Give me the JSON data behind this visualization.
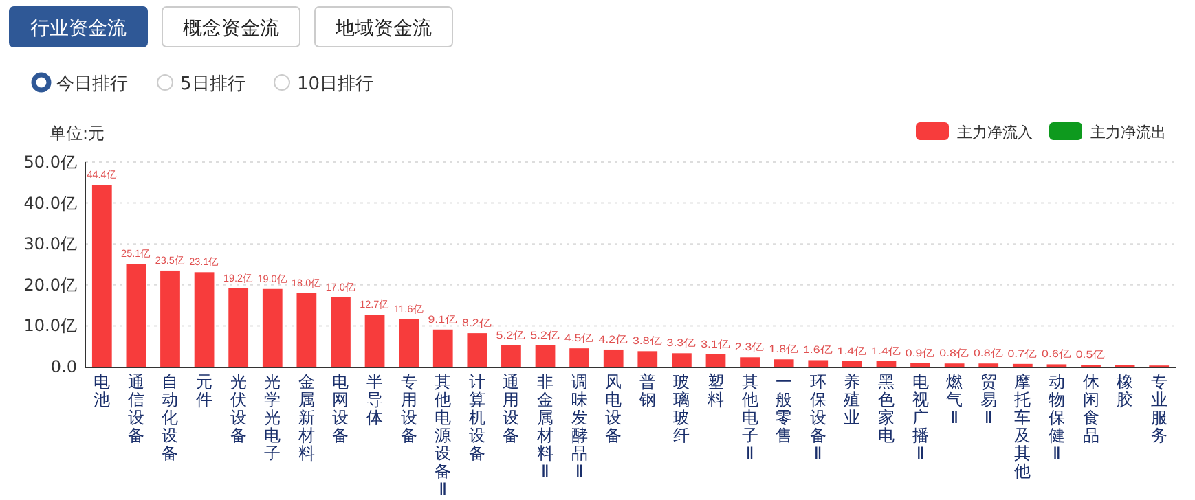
{
  "chart_data": {
    "type": "bar",
    "ylabel": "单位:元",
    "annotations": [
      "行业资金流",
      "概念资金流",
      "地域资金流",
      "今日排行",
      "5日排行",
      "10日排行"
    ],
    "categories": [
      "电池",
      "通信设备",
      "自动化设备",
      "元件",
      "光伏设备",
      "光学光电子",
      "金属新材料",
      "电网设备",
      "半导体",
      "专用设备",
      "其他电源设备Ⅱ",
      "计算机设备",
      "通用设备",
      "非金属材料Ⅱ",
      "调味发酵品Ⅱ",
      "风电设备",
      "普钢",
      "玻璃玻纤",
      "塑料",
      "其他电子Ⅱ",
      "一般零售",
      "环保设备Ⅱ",
      "养殖业",
      "黑色家电",
      "电视广播Ⅱ",
      "燃气Ⅱ",
      "贸易Ⅱ",
      "摩托车及其他",
      "动物保健Ⅱ",
      "休闲食品",
      "橡胶",
      "专业服务"
    ],
    "series": [
      {
        "name": "主力净流入",
        "color": "#f73c3c",
        "values": [
          44.4,
          25.1,
          23.5,
          23.1,
          19.2,
          19.0,
          18.0,
          17.0,
          12.7,
          11.6,
          9.1,
          8.2,
          5.2,
          5.2,
          4.5,
          4.2,
          3.8,
          3.3,
          3.1,
          2.3,
          1.8,
          1.6,
          1.4,
          1.4,
          0.9,
          0.8,
          0.8,
          0.7,
          0.6,
          0.5,
          0.4,
          0.3
        ],
        "value_labels": [
          "44.4亿",
          "25.1亿",
          "23.5亿",
          "23.1亿",
          "19.2亿",
          "19.0亿",
          "18.0亿",
          "17.0亿",
          "12.7亿",
          "11.6亿",
          "9.1亿",
          "8.2亿",
          "5.2亿",
          "5.2亿",
          "4.5亿",
          "4.2亿",
          "3.8亿",
          "3.3亿",
          "3.1亿",
          "2.3亿",
          "1.8亿",
          "1.6亿",
          "1.4亿",
          "1.4亿",
          "0.9亿",
          "0.8亿",
          "0.8亿",
          "0.7亿",
          "0.6亿",
          "0.5亿",
          null,
          null
        ]
      },
      {
        "name": "主力净流出",
        "color": "#0e9a1e",
        "values": [
          null,
          null,
          null,
          null,
          null,
          null,
          null,
          null,
          null,
          null,
          null,
          null,
          null,
          null,
          null,
          null,
          null,
          null,
          null,
          null,
          null,
          null,
          null,
          null,
          null,
          null,
          null,
          null,
          null,
          null,
          null,
          null
        ]
      }
    ],
    "ylim": [
      0,
      50
    ],
    "yticks": [
      {
        "value": 0,
        "label": "0.0"
      },
      {
        "value": 10,
        "label": "10.0亿"
      },
      {
        "value": 20,
        "label": "20.0亿"
      },
      {
        "value": 30,
        "label": "30.0亿"
      },
      {
        "value": 40,
        "label": "40.0亿"
      },
      {
        "value": 50,
        "label": "50.0亿"
      }
    ],
    "grid": "y",
    "legend": "top right"
  }
}
